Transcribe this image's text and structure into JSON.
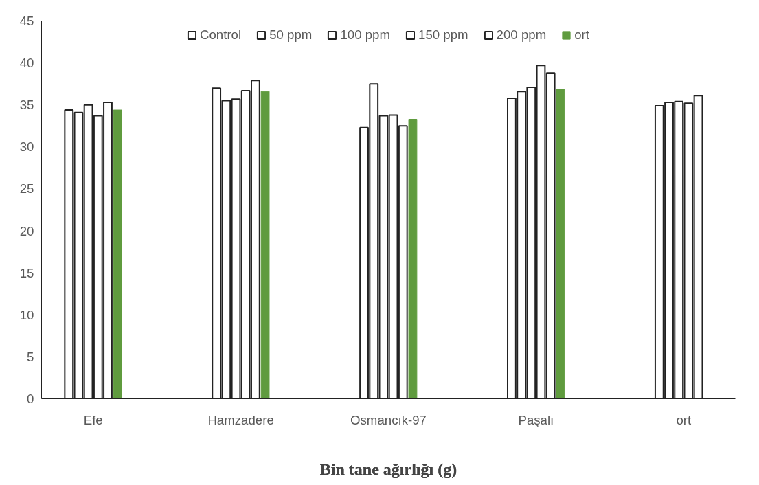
{
  "chart_data": {
    "type": "bar",
    "title": "Bin tane ağırlığı (g)",
    "categories": [
      "Efe",
      "Hamzadere",
      "Osmancık-97",
      "Paşalı",
      "ort"
    ],
    "series": [
      {
        "name": "Control",
        "color": "#ffffff",
        "values": [
          34.4,
          37.0,
          32.3,
          35.8,
          34.9
        ]
      },
      {
        "name": "50 ppm",
        "color": "#ffffff",
        "values": [
          34.1,
          35.5,
          37.5,
          36.6,
          35.3
        ]
      },
      {
        "name": "100 ppm",
        "color": "#ffffff",
        "values": [
          35.0,
          35.7,
          33.7,
          37.1,
          35.4
        ]
      },
      {
        "name": "150 ppm",
        "color": "#ffffff",
        "values": [
          33.7,
          36.7,
          33.8,
          39.7,
          35.2
        ]
      },
      {
        "name": "200 ppm",
        "color": "#ffffff",
        "values": [
          35.3,
          37.9,
          32.5,
          38.8,
          36.1
        ]
      },
      {
        "name": "ort",
        "color": "#5f9b3e",
        "values": [
          34.4,
          36.6,
          33.3,
          36.9,
          null
        ]
      }
    ],
    "ylim": [
      0,
      45
    ],
    "yticks": [
      0,
      5,
      10,
      15,
      20,
      25,
      30,
      35,
      40,
      45
    ],
    "grid": false,
    "legend": "top"
  }
}
